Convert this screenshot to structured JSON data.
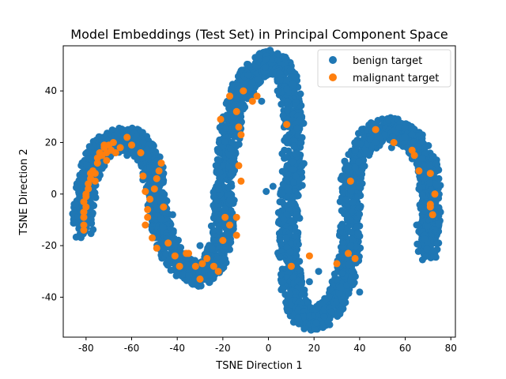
{
  "chart_data": {
    "type": "scatter",
    "title": "Model Embeddings (Test Set) in Principal Component Space",
    "xlabel": "TSNE Direction 1",
    "ylabel": "TSNE Direction 2",
    "xlim": [
      -90,
      82
    ],
    "ylim": [
      -55.5,
      57.5
    ],
    "xticks": [
      -80,
      -60,
      -40,
      -20,
      0,
      20,
      40,
      60,
      80
    ],
    "yticks": [
      -40,
      -20,
      0,
      20,
      40
    ],
    "grid": false,
    "legend_position": "top-right",
    "series": [
      {
        "name": "benign target",
        "color": "#1f77b4",
        "curve": [
          [
            -81,
            -13
          ],
          [
            -81,
            -6
          ],
          [
            -80,
            2
          ],
          [
            -78,
            9
          ],
          [
            -76,
            14
          ],
          [
            -73,
            18
          ],
          [
            -69,
            20
          ],
          [
            -65,
            21
          ],
          [
            -60,
            21
          ],
          [
            -56,
            19
          ],
          [
            -53,
            15
          ],
          [
            -51,
            10
          ],
          [
            -50,
            4
          ],
          [
            -49,
            -3
          ],
          [
            -48,
            -10
          ],
          [
            -46,
            -16
          ],
          [
            -43,
            -22
          ],
          [
            -39,
            -27
          ],
          [
            -35,
            -30
          ],
          [
            -30,
            -31
          ],
          [
            -26,
            -29
          ],
          [
            -23,
            -25
          ],
          [
            -21,
            -19
          ],
          [
            -20,
            -12
          ],
          [
            -20,
            -4
          ],
          [
            -19,
            5
          ],
          [
            -18,
            14
          ],
          [
            -17,
            23
          ],
          [
            -15,
            32
          ],
          [
            -12,
            40
          ],
          [
            -8,
            46
          ],
          [
            -3,
            50
          ],
          [
            1,
            51
          ],
          [
            5,
            49
          ],
          [
            8,
            44
          ],
          [
            10,
            36
          ],
          [
            11,
            26
          ],
          [
            11,
            15
          ],
          [
            10,
            4
          ],
          [
            9,
            -6
          ],
          [
            9,
            -16
          ],
          [
            9,
            -25
          ],
          [
            10,
            -34
          ],
          [
            12,
            -42
          ],
          [
            15,
            -47
          ],
          [
            19,
            -49
          ],
          [
            24,
            -47
          ],
          [
            29,
            -42
          ],
          [
            33,
            -35
          ],
          [
            35,
            -26
          ],
          [
            36,
            -16
          ],
          [
            36,
            -6
          ],
          [
            36,
            4
          ],
          [
            38,
            12
          ],
          [
            41,
            19
          ],
          [
            46,
            23
          ],
          [
            52,
            25
          ],
          [
            58,
            24
          ],
          [
            63,
            21
          ],
          [
            67,
            16
          ],
          [
            70,
            10
          ],
          [
            71,
            3
          ],
          [
            71,
            -4
          ],
          [
            71,
            -11
          ],
          [
            70,
            -17
          ],
          [
            70,
            -22
          ]
        ],
        "curve_half_width": 5,
        "extra_points": [
          [
            -1,
            1
          ],
          [
            2,
            3
          ],
          [
            5,
            -3
          ],
          [
            -3,
            36
          ],
          [
            4,
            40
          ],
          [
            7,
            17
          ],
          [
            18,
            -34
          ],
          [
            22,
            -30
          ],
          [
            25,
            -41
          ],
          [
            27,
            -37
          ],
          [
            29,
            -31
          ],
          [
            40,
            -38
          ],
          [
            60,
            22
          ],
          [
            65,
            -12
          ],
          [
            -42,
            -8
          ],
          [
            -30,
            -20
          ],
          [
            -8,
            41
          ],
          [
            2,
            47
          ],
          [
            13,
            -48
          ],
          [
            21,
            -50
          ],
          [
            -62,
            15
          ],
          [
            -46,
            8
          ],
          [
            -24,
            -18
          ],
          [
            -16,
            20
          ],
          [
            12,
            7
          ],
          [
            47,
            20
          ],
          [
            54,
            18
          ],
          [
            66,
            2
          ],
          [
            32,
            -45
          ],
          [
            -11,
            33
          ]
        ]
      },
      {
        "name": "malignant target",
        "color": "#ff7f0e",
        "points": [
          [
            -81,
            -14
          ],
          [
            -81,
            -12
          ],
          [
            -81,
            -9
          ],
          [
            -81,
            -7
          ],
          [
            -80,
            -5
          ],
          [
            -81,
            -3
          ],
          [
            -80,
            -1
          ],
          [
            -80,
            0
          ],
          [
            -79,
            2
          ],
          [
            -79,
            4
          ],
          [
            -78,
            6
          ],
          [
            -78,
            8
          ],
          [
            -77,
            9
          ],
          [
            -76,
            5
          ],
          [
            -76,
            8
          ],
          [
            -75,
            12
          ],
          [
            -75,
            14
          ],
          [
            -74,
            16
          ],
          [
            -73,
            15
          ],
          [
            -72,
            19
          ],
          [
            -72,
            18
          ],
          [
            -71,
            16
          ],
          [
            -70,
            19
          ],
          [
            -69,
            17
          ],
          [
            -68,
            20
          ],
          [
            -67,
            16
          ],
          [
            -71,
            13
          ],
          [
            -65,
            18
          ],
          [
            -62,
            22
          ],
          [
            -60,
            19
          ],
          [
            -56,
            16
          ],
          [
            -55,
            7
          ],
          [
            -54,
            1
          ],
          [
            -53,
            -6
          ],
          [
            -53,
            -9
          ],
          [
            -54,
            -12
          ],
          [
            -52,
            -2
          ],
          [
            -50,
            2
          ],
          [
            -49,
            6
          ],
          [
            -48,
            9
          ],
          [
            -47,
            12
          ],
          [
            -51,
            -17
          ],
          [
            -49,
            -21
          ],
          [
            -46,
            -5
          ],
          [
            -44,
            -19
          ],
          [
            -41,
            -24
          ],
          [
            -39,
            -28
          ],
          [
            -36,
            -23
          ],
          [
            -35,
            -23
          ],
          [
            -32,
            -28
          ],
          [
            -30,
            -33
          ],
          [
            -29,
            -27
          ],
          [
            -27,
            -25
          ],
          [
            -24,
            -28
          ],
          [
            -22,
            -30
          ],
          [
            -19,
            -9
          ],
          [
            -20,
            -18
          ],
          [
            -17,
            -12
          ],
          [
            -14,
            -16
          ],
          [
            -14,
            -9
          ],
          [
            -21,
            29
          ],
          [
            -17,
            38
          ],
          [
            -14,
            32
          ],
          [
            -13,
            26
          ],
          [
            -12,
            23
          ],
          [
            -13,
            11
          ],
          [
            -12,
            5
          ],
          [
            -11,
            40
          ],
          [
            -7,
            36
          ],
          [
            -5,
            38
          ],
          [
            8,
            27
          ],
          [
            10,
            -28
          ],
          [
            18,
            -24
          ],
          [
            30,
            -27
          ],
          [
            35,
            -23
          ],
          [
            38,
            -25
          ],
          [
            36,
            5
          ],
          [
            47,
            25
          ],
          [
            55,
            20
          ],
          [
            63,
            17
          ],
          [
            64,
            15
          ],
          [
            66,
            9
          ],
          [
            71,
            8
          ],
          [
            73,
            0
          ],
          [
            71,
            -4
          ],
          [
            71,
            -5
          ],
          [
            72,
            -8
          ]
        ]
      }
    ]
  }
}
